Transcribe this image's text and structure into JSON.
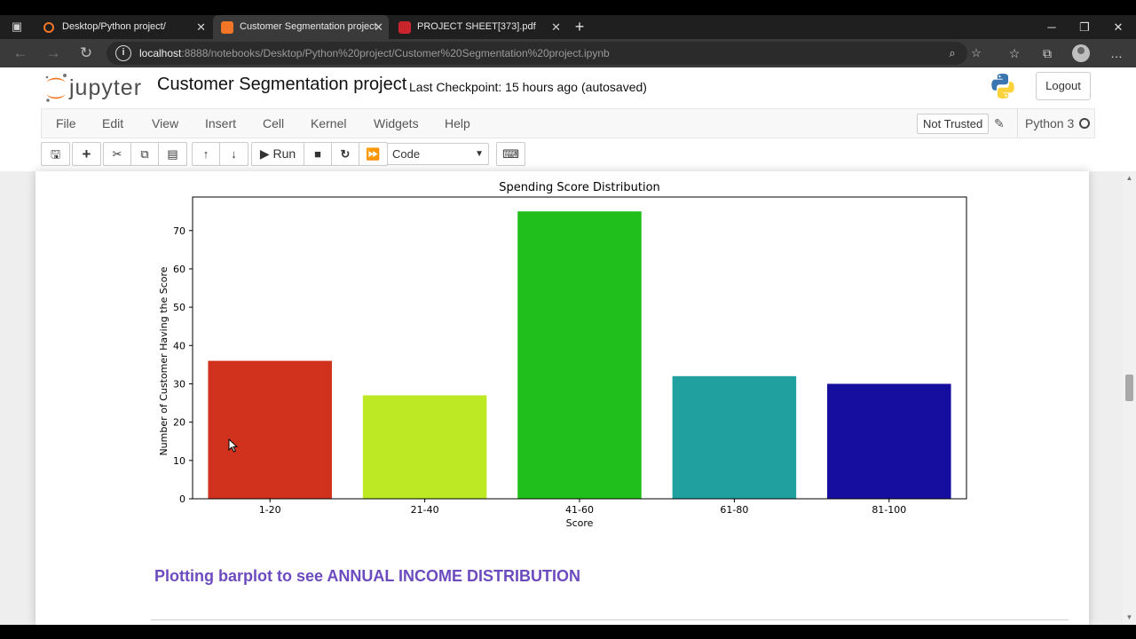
{
  "browser": {
    "tabs": [
      {
        "label": "Desktop/Python project/",
        "active": false
      },
      {
        "label": "Customer Segmentation project",
        "active": true
      },
      {
        "label": "PROJECT SHEET[373].pdf",
        "active": false
      }
    ],
    "url_host": "localhost",
    "url_rest": ":8888/notebooks/Desktop/Python%20project/Customer%20Segmentation%20project.ipynb",
    "accent": "#3a3a3a"
  },
  "jupyter": {
    "logo_text": "jupyter",
    "notebook_name": "Customer Segmentation project",
    "checkpoint": "Last Checkpoint: 15 hours ago",
    "autosaved": "(autosaved)",
    "logout_label": "Logout",
    "menu": [
      "File",
      "Edit",
      "View",
      "Insert",
      "Cell",
      "Kernel",
      "Widgets",
      "Help"
    ],
    "trust_label": "Not Trusted",
    "kernel_name": "Python 3",
    "run_label": "Run",
    "cell_type": "Code",
    "brand_color": "#f37626"
  },
  "notebook": {
    "heading": "Plotting barplot to see ANNUAL INCOME DISTRIBUTION",
    "heading_color": "#6c4bbf"
  },
  "chart_data": {
    "type": "bar",
    "title": "Spending Score Distribution",
    "xlabel": "Score",
    "ylabel": "Number of Customer Having the Score",
    "categories": [
      "1-20",
      "21-40",
      "41-60",
      "61-80",
      "81-100"
    ],
    "values": [
      36,
      27,
      75,
      32,
      30
    ],
    "colors": [
      "#d0321e",
      "#bce923",
      "#21bf1b",
      "#21a0a0",
      "#160e9e"
    ],
    "yticks": [
      0,
      10,
      20,
      30,
      40,
      50,
      60,
      70
    ],
    "ylim": [
      0,
      78.75
    ],
    "grid": false
  }
}
